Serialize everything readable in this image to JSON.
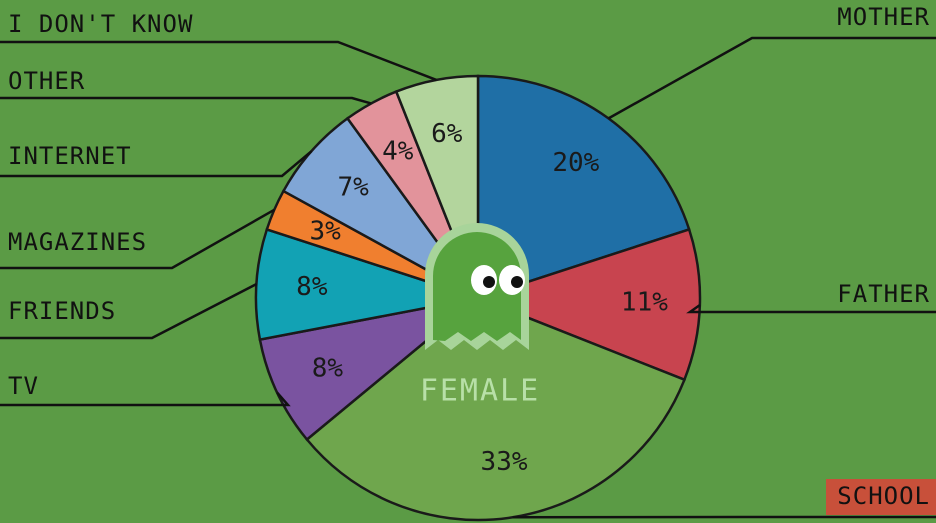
{
  "chart_data": {
    "type": "pie",
    "categories": [
      "MOTHER",
      "FATHER",
      "SCHOOL",
      "TV",
      "FRIENDS",
      "MAGAZINES",
      "INTERNET",
      "OTHER",
      "I DON'T KNOW"
    ],
    "values": [
      20,
      11,
      33,
      8,
      8,
      3,
      7,
      4,
      6
    ],
    "value_labels": [
      "20%",
      "11%",
      "33%",
      "8%",
      "8%",
      "3%",
      "7%",
      "4%",
      "6%"
    ],
    "colors": [
      "#1f6fa6",
      "#c8444f",
      "#6fa64d",
      "#7a53a0",
      "#12a2b4",
      "#f07f2f",
      "#80a6d6",
      "#e2939b",
      "#b3d59d"
    ],
    "annotation": "FEMALE"
  }
}
